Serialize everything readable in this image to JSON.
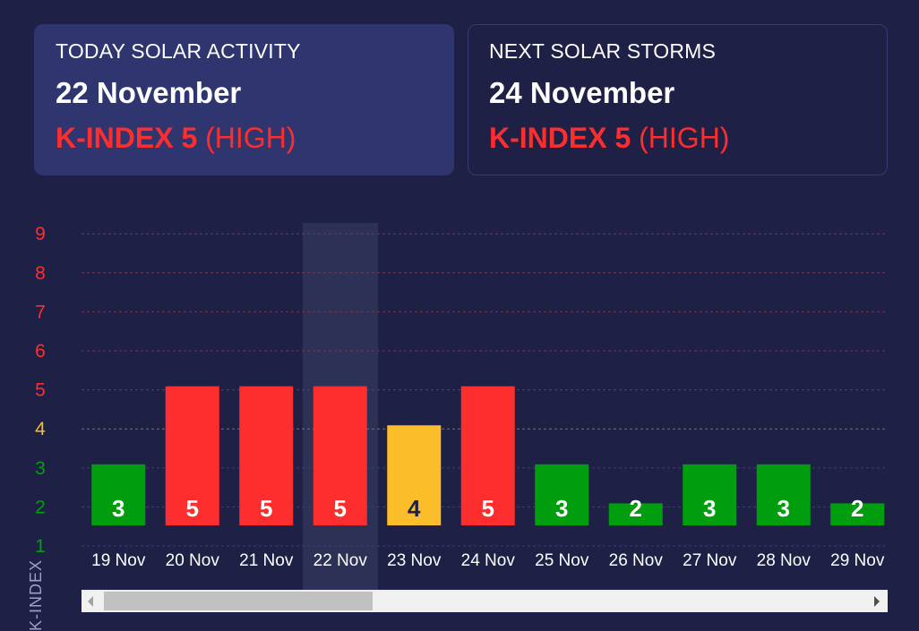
{
  "today": {
    "label": "TODAY SOLAR ACTIVITY",
    "date": "22 November",
    "k_index": "K-INDEX 5",
    "level": "(HIGH)"
  },
  "next": {
    "label": "NEXT SOLAR STORMS",
    "date": "24 November",
    "k_index": "K-INDEX 5",
    "level": "(HIGH)"
  },
  "axis": {
    "ylabel": "K-INDEX"
  },
  "colors": {
    "high": "#ff2e2e",
    "moderate": "#fbbd2a",
    "low": "#009e0f",
    "highlight": "#2e3156"
  },
  "chart_data": {
    "type": "bar",
    "categories": [
      "19 Nov",
      "20 Nov",
      "21 Nov",
      "22 Nov",
      "23 Nov",
      "24 Nov",
      "25 Nov",
      "26 Nov",
      "27 Nov",
      "28 Nov",
      "29 Nov"
    ],
    "values": [
      3,
      5,
      5,
      5,
      4,
      5,
      3,
      2,
      3,
      3,
      2
    ],
    "ylabel": "K-INDEX",
    "yticks": [
      1,
      2,
      3,
      4,
      5,
      6,
      7,
      8,
      9
    ],
    "ylim": [
      1,
      9
    ],
    "highlighted_category": "22 Nov",
    "grid": true
  }
}
